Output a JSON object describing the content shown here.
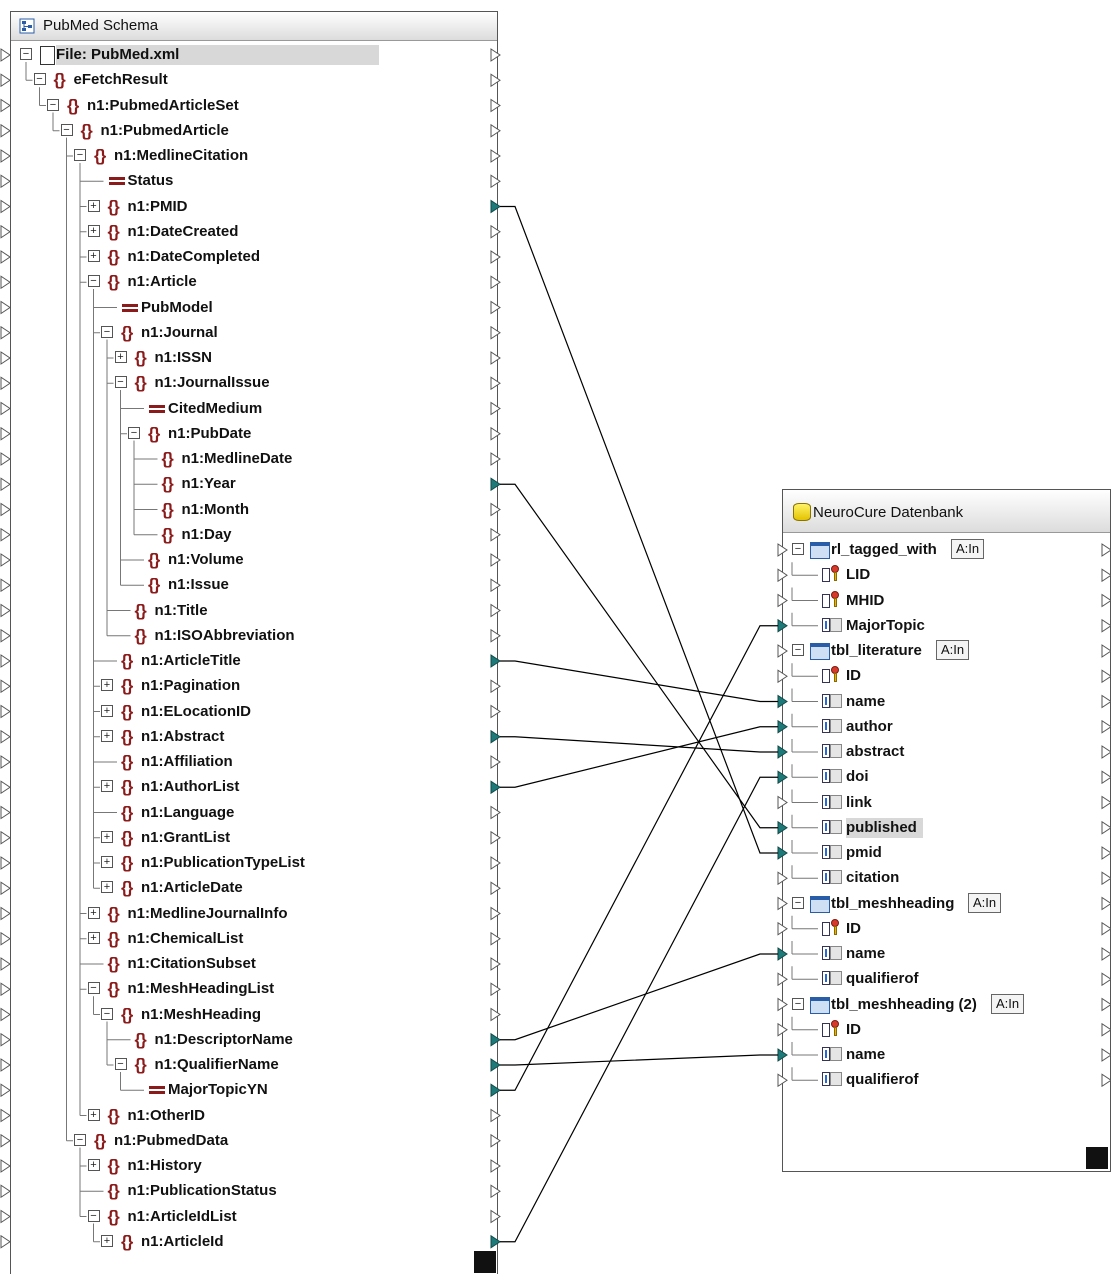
{
  "colors": {
    "element": "#8b1a1a",
    "connector": "#1e7a78",
    "connector_empty": "#ffffff",
    "line": "#000000"
  },
  "source": {
    "title": "PubMed Schema",
    "rows": [
      {
        "label": "File: PubMed.xml",
        "type": "file",
        "depth": 0,
        "toggle": "minus"
      },
      {
        "label": "eFetchResult",
        "type": "element",
        "depth": 1,
        "toggle": "minus"
      },
      {
        "label": "n1:PubmedArticleSet",
        "type": "element",
        "depth": 2,
        "toggle": "minus"
      },
      {
        "label": "n1:PubmedArticle",
        "type": "element",
        "depth": 3,
        "toggle": "minus"
      },
      {
        "label": "n1:MedlineCitation",
        "type": "element",
        "depth": 4,
        "toggle": "minus"
      },
      {
        "label": "Status",
        "type": "attribute",
        "depth": 5,
        "toggle": "none"
      },
      {
        "label": "n1:PMID",
        "type": "element",
        "depth": 5,
        "toggle": "plus"
      },
      {
        "label": "n1:DateCreated",
        "type": "element",
        "depth": 5,
        "toggle": "plus"
      },
      {
        "label": "n1:DateCompleted",
        "type": "element",
        "depth": 5,
        "toggle": "plus"
      },
      {
        "label": "n1:Article",
        "type": "element",
        "depth": 5,
        "toggle": "minus"
      },
      {
        "label": "PubModel",
        "type": "attribute",
        "depth": 6,
        "toggle": "none"
      },
      {
        "label": "n1:Journal",
        "type": "element",
        "depth": 6,
        "toggle": "minus"
      },
      {
        "label": "n1:ISSN",
        "type": "element",
        "depth": 7,
        "toggle": "plus"
      },
      {
        "label": "n1:JournalIssue",
        "type": "element",
        "depth": 7,
        "toggle": "minus"
      },
      {
        "label": "CitedMedium",
        "type": "attribute",
        "depth": 8,
        "toggle": "none"
      },
      {
        "label": "n1:PubDate",
        "type": "element",
        "depth": 8,
        "toggle": "minus"
      },
      {
        "label": "n1:MedlineDate",
        "type": "element",
        "depth": 9,
        "toggle": "none"
      },
      {
        "label": "n1:Year",
        "type": "element",
        "depth": 9,
        "toggle": "none"
      },
      {
        "label": "n1:Month",
        "type": "element",
        "depth": 9,
        "toggle": "none"
      },
      {
        "label": "n1:Day",
        "type": "element",
        "depth": 9,
        "toggle": "none"
      },
      {
        "label": "n1:Volume",
        "type": "element",
        "depth": 8,
        "toggle": "none"
      },
      {
        "label": "n1:Issue",
        "type": "element",
        "depth": 8,
        "toggle": "none"
      },
      {
        "label": "n1:Title",
        "type": "element",
        "depth": 7,
        "toggle": "none"
      },
      {
        "label": "n1:ISOAbbreviation",
        "type": "element",
        "depth": 7,
        "toggle": "none"
      },
      {
        "label": "n1:ArticleTitle",
        "type": "element",
        "depth": 6,
        "toggle": "none"
      },
      {
        "label": "n1:Pagination",
        "type": "element",
        "depth": 6,
        "toggle": "plus"
      },
      {
        "label": "n1:ELocationID",
        "type": "element",
        "depth": 6,
        "toggle": "plus"
      },
      {
        "label": "n1:Abstract",
        "type": "element",
        "depth": 6,
        "toggle": "plus"
      },
      {
        "label": "n1:Affiliation",
        "type": "element",
        "depth": 6,
        "toggle": "none"
      },
      {
        "label": "n1:AuthorList",
        "type": "element",
        "depth": 6,
        "toggle": "plus"
      },
      {
        "label": "n1:Language",
        "type": "element",
        "depth": 6,
        "toggle": "none"
      },
      {
        "label": "n1:GrantList",
        "type": "element",
        "depth": 6,
        "toggle": "plus"
      },
      {
        "label": "n1:PublicationTypeList",
        "type": "element",
        "depth": 6,
        "toggle": "plus"
      },
      {
        "label": "n1:ArticleDate",
        "type": "element",
        "depth": 6,
        "toggle": "plus"
      },
      {
        "label": "n1:MedlineJournalInfo",
        "type": "element",
        "depth": 5,
        "toggle": "plus"
      },
      {
        "label": "n1:ChemicalList",
        "type": "element",
        "depth": 5,
        "toggle": "plus"
      },
      {
        "label": "n1:CitationSubset",
        "type": "element",
        "depth": 5,
        "toggle": "none"
      },
      {
        "label": "n1:MeshHeadingList",
        "type": "element",
        "depth": 5,
        "toggle": "minus"
      },
      {
        "label": "n1:MeshHeading",
        "type": "element",
        "depth": 6,
        "toggle": "minus"
      },
      {
        "label": "n1:DescriptorName",
        "type": "element",
        "depth": 7,
        "toggle": "none"
      },
      {
        "label": "n1:QualifierName",
        "type": "element",
        "depth": 7,
        "toggle": "minus"
      },
      {
        "label": "MajorTopicYN",
        "type": "attribute",
        "depth": 8,
        "toggle": "none"
      },
      {
        "label": "n1:OtherID",
        "type": "element",
        "depth": 5,
        "toggle": "plus"
      },
      {
        "label": "n1:PubmedData",
        "type": "element",
        "depth": 4,
        "toggle": "minus"
      },
      {
        "label": "n1:History",
        "type": "element",
        "depth": 5,
        "toggle": "plus"
      },
      {
        "label": "n1:PublicationStatus",
        "type": "element",
        "depth": 5,
        "toggle": "none"
      },
      {
        "label": "n1:ArticleIdList",
        "type": "element",
        "depth": 5,
        "toggle": "minus"
      },
      {
        "label": "n1:ArticleId",
        "type": "element",
        "depth": 6,
        "toggle": "plus"
      }
    ]
  },
  "target": {
    "title": "NeuroCure Datenbank",
    "rows": [
      {
        "label": "rl_tagged_with",
        "type": "table",
        "mode": "A:In"
      },
      {
        "label": "LID",
        "type": "key"
      },
      {
        "label": "MHID",
        "type": "key"
      },
      {
        "label": "MajorTopic",
        "type": "column"
      },
      {
        "label": "tbl_literature",
        "type": "table",
        "mode": "A:In"
      },
      {
        "label": "ID",
        "type": "key"
      },
      {
        "label": "name",
        "type": "column"
      },
      {
        "label": "author",
        "type": "column"
      },
      {
        "label": "abstract",
        "type": "column"
      },
      {
        "label": "doi",
        "type": "column"
      },
      {
        "label": "link",
        "type": "column"
      },
      {
        "label": "published",
        "type": "column",
        "selected": true
      },
      {
        "label": "pmid",
        "type": "column"
      },
      {
        "label": "citation",
        "type": "column"
      },
      {
        "label": "tbl_meshheading",
        "type": "table",
        "mode": "A:In"
      },
      {
        "label": "ID",
        "type": "key"
      },
      {
        "label": "name",
        "type": "column"
      },
      {
        "label": "qualifierof",
        "type": "column"
      },
      {
        "label": "tbl_meshheading (2)",
        "type": "table",
        "mode": "A:In"
      },
      {
        "label": "ID",
        "type": "key"
      },
      {
        "label": "name",
        "type": "column"
      },
      {
        "label": "qualifierof",
        "type": "column"
      }
    ]
  },
  "mappings": [
    {
      "from": "n1:PMID",
      "to": "pmid"
    },
    {
      "from": "n1:Year",
      "to": "published"
    },
    {
      "from": "n1:ArticleTitle",
      "to": "name"
    },
    {
      "from": "n1:Abstract",
      "to": "abstract"
    },
    {
      "from": "n1:AuthorList",
      "to": "author"
    },
    {
      "from": "n1:DescriptorName",
      "to": "name",
      "target_table": "tbl_meshheading"
    },
    {
      "from": "n1:QualifierName",
      "to": "name",
      "target_table": "tbl_meshheading (2)"
    },
    {
      "from": "MajorTopicYN",
      "to": "MajorTopic"
    },
    {
      "from": "n1:ArticleId",
      "to": "doi"
    }
  ]
}
